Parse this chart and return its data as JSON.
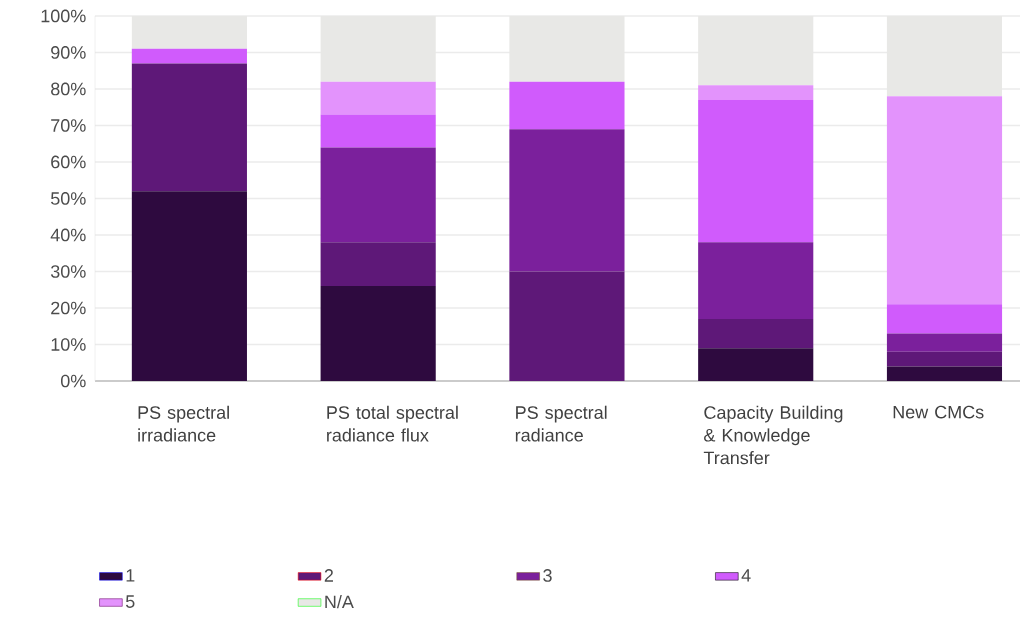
{
  "chart_data": {
    "type": "bar",
    "stacked": true,
    "categories": [
      "PS spectral irradiance",
      "PS total spectral radiance flux",
      "PS spectral radiance",
      "Capacity Building & Knowledge Transfer",
      "New CMCs"
    ],
    "series": [
      {
        "name": "1",
        "color": "#2e0a3f",
        "values": [
          52,
          26,
          0,
          9,
          4
        ]
      },
      {
        "name": "2",
        "color": "#5e1878",
        "values": [
          35,
          12,
          30,
          8,
          4
        ]
      },
      {
        "name": "3",
        "color": "#7b209c",
        "values": [
          0,
          26,
          39,
          21,
          5
        ]
      },
      {
        "name": "4",
        "color": "#d05bfc",
        "values": [
          4,
          9,
          13,
          39,
          8
        ]
      },
      {
        "name": "5",
        "color": "#e393fc",
        "values": [
          0,
          9,
          0,
          4,
          57
        ]
      },
      {
        "name": "N/A",
        "color": "#e8e8e6",
        "values": [
          9,
          18,
          18,
          19,
          22
        ]
      }
    ],
    "ylim": [
      0,
      100
    ],
    "yticks": [
      {
        "value": 0,
        "label": "0%"
      },
      {
        "value": 10,
        "label": "10%"
      },
      {
        "value": 20,
        "label": "20%"
      },
      {
        "value": 30,
        "label": "30%"
      },
      {
        "value": 40,
        "label": "40%"
      },
      {
        "value": 50,
        "label": "50%"
      },
      {
        "value": 60,
        "label": "60%"
      },
      {
        "value": 70,
        "label": "70%"
      },
      {
        "value": 80,
        "label": "80%"
      },
      {
        "value": 90,
        "label": "90%"
      },
      {
        "value": 100,
        "label": "100%"
      }
    ],
    "grid": "y",
    "legend": "bottom"
  }
}
